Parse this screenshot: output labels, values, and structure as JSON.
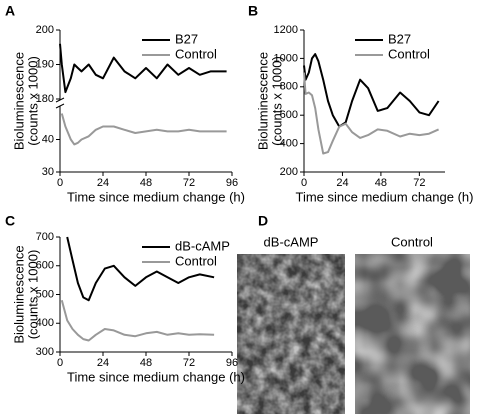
{
  "chart_data": [
    {
      "type": "line",
      "label": "A",
      "ylabel": [
        "Bioluminescence",
        "(counts x 1000)"
      ],
      "xlabel": "Time since medium change (h)",
      "x": [
        0,
        1,
        3,
        6,
        8,
        10,
        12,
        16,
        20,
        24,
        30,
        36,
        42,
        48,
        54,
        60,
        66,
        72,
        78,
        84,
        90,
        93
      ],
      "xlim": [
        0,
        96
      ],
      "xticks": [
        0,
        24,
        48,
        72,
        96
      ],
      "ylim": [
        180,
        200
      ],
      "yticks": [
        180,
        190,
        200
      ],
      "ylim_lower": [
        30,
        50
      ],
      "yticks_lower": [
        30,
        40
      ],
      "legend": "upper right",
      "series": [
        {
          "name": "B27",
          "color": "#000000",
          "values": [
            196,
            190,
            182,
            186,
            190,
            189,
            188,
            190,
            187,
            186,
            192,
            188,
            186,
            189,
            186,
            190,
            187,
            189,
            187,
            188,
            188,
            188
          ]
        },
        {
          "name": "Control",
          "color": "#999999",
          "axis": "lower",
          "values": [
            null,
            48,
            44,
            40,
            38.5,
            39,
            40,
            41,
            43,
            44,
            44,
            43,
            42,
            42.5,
            43,
            42.5,
            42.5,
            43,
            42.5,
            42.5,
            42.5,
            42.5
          ]
        }
      ]
    },
    {
      "type": "line",
      "label": "B",
      "ylabel": [
        "Bioluminescence",
        "(counts x 1000)"
      ],
      "xlabel": "Time since medium change (h)",
      "x": [
        0,
        1,
        3,
        5,
        7,
        9,
        12,
        15,
        18,
        22,
        26,
        30,
        35,
        40,
        46,
        52,
        60,
        66,
        72,
        78,
        84
      ],
      "xlim": [
        0,
        88
      ],
      "xticks": [
        0,
        24,
        48,
        72
      ],
      "ylim": [
        200,
        1200
      ],
      "yticks": [
        200,
        400,
        600,
        800,
        1000,
        1200
      ],
      "legend": "upper right",
      "series": [
        {
          "name": "B27",
          "color": "#000000",
          "values": [
            950,
            850,
            900,
            1000,
            1030,
            980,
            850,
            700,
            600,
            520,
            550,
            700,
            850,
            790,
            630,
            650,
            760,
            700,
            620,
            600,
            700
          ]
        },
        {
          "name": "Control",
          "color": "#999999",
          "values": [
            900,
            750,
            760,
            740,
            650,
            500,
            330,
            340,
            420,
            520,
            540,
            480,
            440,
            460,
            500,
            490,
            450,
            470,
            460,
            470,
            500
          ]
        }
      ]
    },
    {
      "type": "line",
      "label": "C",
      "ylabel": [
        "Bioluminescence",
        "(counts x 1000)"
      ],
      "xlabel": "Time since medium change (h)",
      "x": [
        1,
        4,
        7,
        10,
        13,
        16,
        20,
        25,
        30,
        36,
        42,
        48,
        54,
        60,
        66,
        72,
        78,
        86
      ],
      "xlim": [
        0,
        96
      ],
      "xticks": [
        0,
        24,
        48,
        72,
        96
      ],
      "ylim": [
        300,
        700
      ],
      "yticks": [
        300,
        400,
        500,
        600,
        700
      ],
      "legend": "upper right",
      "series": [
        {
          "name": "dB-cAMP",
          "color": "#000000",
          "values": [
            null,
            700,
            620,
            540,
            490,
            480,
            540,
            590,
            600,
            560,
            530,
            560,
            580,
            560,
            540,
            560,
            570,
            560
          ]
        },
        {
          "name": "Control",
          "color": "#999999",
          "values": [
            480,
            410,
            380,
            360,
            345,
            340,
            360,
            380,
            375,
            360,
            355,
            365,
            370,
            360,
            365,
            360,
            362,
            360
          ]
        }
      ]
    }
  ],
  "panel_d": {
    "label": "D",
    "captions": [
      "dB-cAMP",
      "Control"
    ]
  }
}
